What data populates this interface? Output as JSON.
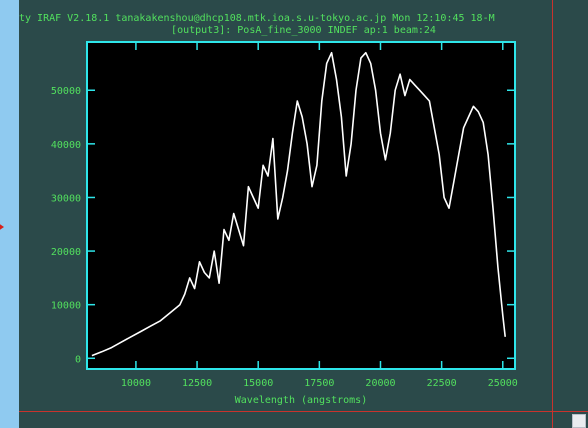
{
  "window": {
    "title": "ty IRAF V2.18.1 tanakakenshou@dhcp108.mtk.ioa.s.u-tokyo.ac.jp Mon 12:10:45 18-M",
    "subtitle": "[output3]: PosA_fine_3000 INDEF ap:1 beam:24"
  },
  "colors": {
    "frame_bg": "#2b4a4a",
    "plot_bg": "#000000",
    "axis": "#2ee6ea",
    "text_green": "#52e05e",
    "data_line": "#ffffff",
    "desktop": "#8fcaf0",
    "red_marker": "#d8201a"
  },
  "chart_data": {
    "type": "line",
    "xlabel": "Wavelength (angstroms)",
    "ylabel": "",
    "xlim": [
      8000,
      25500
    ],
    "ylim": [
      -2000,
      59000
    ],
    "x_ticks": [
      10000,
      12500,
      15000,
      17500,
      20000,
      22500,
      25000
    ],
    "x_tick_labels": [
      "10000",
      "12500",
      "15000",
      "17500",
      "20000",
      "22500",
      "25000"
    ],
    "y_ticks": [
      0,
      10000,
      20000,
      30000,
      40000,
      50000
    ],
    "y_tick_labels": [
      "0",
      "10000",
      "20000",
      "30000",
      "40000",
      "50000"
    ],
    "grid": false,
    "series": [
      {
        "x": [
          8200,
          8600,
          9000,
          9400,
          9800,
          10200,
          10600,
          11000,
          11400,
          11800,
          12000,
          12200,
          12400,
          12600,
          12800,
          13000,
          13200,
          13400,
          13600,
          13800,
          14000,
          14200,
          14400,
          14600,
          14800,
          15000,
          15200,
          15400,
          15600,
          15800,
          16000,
          16200,
          16400,
          16600,
          16800,
          17000,
          17200,
          17400,
          17600,
          17800,
          18000,
          18200,
          18400,
          18600,
          18800,
          19000,
          19200,
          19400,
          19600,
          19800,
          20000,
          20200,
          20400,
          20600,
          20800,
          21000,
          21200,
          21400,
          21600,
          21800,
          22000,
          22200,
          22400,
          22600,
          22800,
          23000,
          23200,
          23400,
          23600,
          23800,
          24000,
          24200,
          24400,
          24600,
          24800,
          25000,
          25100
        ],
        "y": [
          500,
          1200,
          2000,
          3000,
          4000,
          5000,
          6000,
          7000,
          8500,
          10000,
          12000,
          15000,
          13000,
          18000,
          16000,
          15000,
          20000,
          14000,
          24000,
          22000,
          27000,
          24000,
          21000,
          32000,
          30000,
          28000,
          36000,
          34000,
          41000,
          26000,
          30000,
          35000,
          42000,
          48000,
          45000,
          40000,
          32000,
          36000,
          48000,
          55000,
          57000,
          52000,
          45000,
          34000,
          40000,
          50000,
          56000,
          57000,
          55000,
          50000,
          42000,
          37000,
          42000,
          50000,
          53000,
          49000,
          52000,
          51000,
          50000,
          49000,
          48000,
          43000,
          38000,
          30000,
          28000,
          33000,
          38000,
          43000,
          45000,
          47000,
          46000,
          44000,
          38000,
          28000,
          17000,
          8000,
          4000
        ]
      }
    ]
  }
}
